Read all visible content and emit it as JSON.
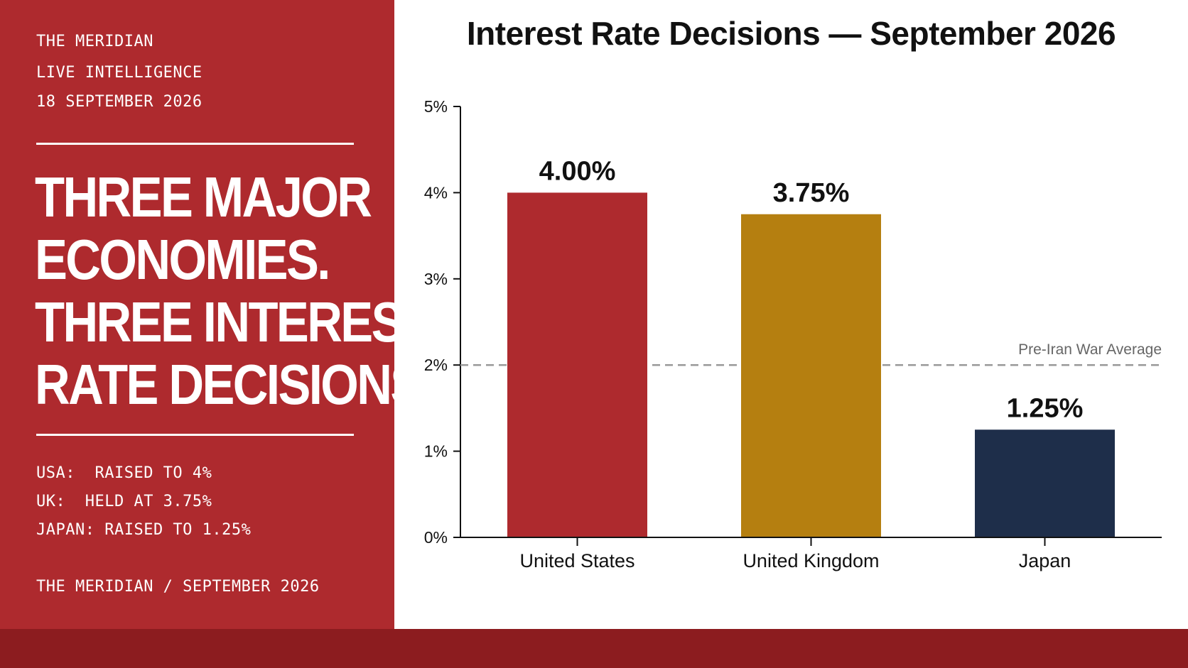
{
  "sidebar": {
    "brand": "THE MERIDIAN",
    "section": "LIVE INTELLIGENCE",
    "date": "18 SEPTEMBER 2026",
    "headline_lines": [
      "THREE MAJOR",
      "ECONOMIES.",
      "THREE INTEREST",
      "RATE DECISIONS."
    ],
    "summary": [
      "USA:  RAISED TO 4%",
      "UK:  HELD AT 3.75%",
      "JAPAN: RAISED TO 1.25%"
    ],
    "footer": "THE MERIDIAN / SEPTEMBER 2026"
  },
  "colors": {
    "panel": "#ae2a2e",
    "bottom_bar": "#8c1c1f",
    "us_bar": "#ae2a2e",
    "uk_bar": "#b57f10",
    "japan_bar": "#1e2e4a",
    "reference_line": "#999999"
  },
  "chart_data": {
    "type": "bar",
    "title": "Interest Rate Decisions — September 2026",
    "categories": [
      "United States",
      "United Kingdom",
      "Japan"
    ],
    "values": [
      4.0,
      3.75,
      1.25
    ],
    "value_labels": [
      "4.00%",
      "3.75%",
      "1.25%"
    ],
    "bar_colors": [
      "#ae2a2e",
      "#b57f10",
      "#1e2e4a"
    ],
    "ylim": [
      0,
      5
    ],
    "yticks": [
      0,
      1,
      2,
      3,
      4,
      5
    ],
    "ytick_labels": [
      "0%",
      "1%",
      "2%",
      "3%",
      "4%",
      "5%"
    ],
    "xlabel": "",
    "ylabel": "",
    "grid": false,
    "reference_line": {
      "value": 2,
      "label": "Pre-Iran War Average",
      "style": "dashed"
    }
  }
}
